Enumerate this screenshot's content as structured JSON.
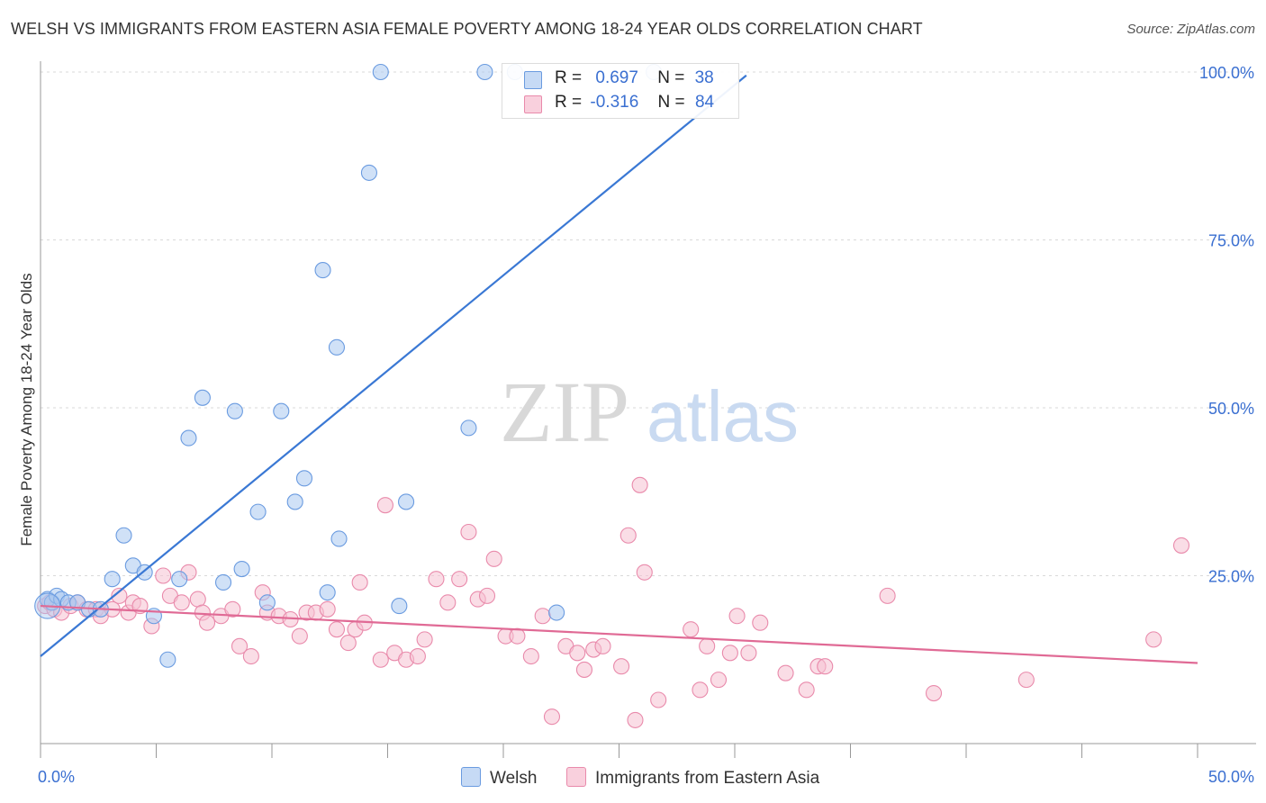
{
  "title": "WELSH VS IMMIGRANTS FROM EASTERN ASIA FEMALE POVERTY AMONG 18-24 YEAR OLDS CORRELATION CHART",
  "source": "Source: ZipAtlas.com",
  "watermark": {
    "zip": "ZIP",
    "atlas": "atlas"
  },
  "legend": {
    "welsh": {
      "r_label": "R =",
      "r_value": "0.697",
      "n_label": "N =",
      "n_value": "38"
    },
    "immigrants": {
      "r_label": "R =",
      "r_value": "-0.316",
      "n_label": "N =",
      "n_value": "84"
    }
  },
  "bottom_legend": {
    "welsh": "Welsh",
    "immigrants": "Immigrants from Eastern Asia"
  },
  "colors": {
    "welsh_fill": "#a9c8f0",
    "welsh_stroke": "#6a9be0",
    "welsh_line": "#3a78d4",
    "imm_fill": "#f6c1d2",
    "imm_stroke": "#e98aab",
    "imm_line": "#e06a95",
    "axis_label": "#3a6fd1",
    "grid": "#d9d9d9"
  },
  "chart_data": {
    "type": "scatter",
    "title": "WELSH VS IMMIGRANTS FROM EASTERN ASIA FEMALE POVERTY AMONG 18-24 YEAR OLDS CORRELATION CHART",
    "xlabel": "",
    "ylabel": "Female Poverty Among 18-24 Year Olds",
    "xlim": [
      0,
      50
    ],
    "ylim": [
      0,
      100
    ],
    "x_tick_labels": [
      "0.0%",
      "50.0%"
    ],
    "y_ticks": [
      25,
      50,
      75,
      100
    ],
    "y_tick_labels": [
      "25.0%",
      "50.0%",
      "75.0%",
      "100.0%"
    ],
    "grid": true,
    "legend_placement": "top-center",
    "series": [
      {
        "name": "Welsh",
        "points": [
          [
            0.3,
            21.5
          ],
          [
            0.5,
            21.0
          ],
          [
            0.7,
            22.0
          ],
          [
            0.9,
            21.5
          ],
          [
            1.2,
            21.0
          ],
          [
            1.6,
            21.0
          ],
          [
            2.1,
            20.0
          ],
          [
            2.6,
            20.0
          ],
          [
            3.1,
            24.5
          ],
          [
            3.6,
            31.0
          ],
          [
            4.0,
            26.5
          ],
          [
            4.5,
            25.5
          ],
          [
            4.9,
            19.0
          ],
          [
            5.5,
            12.5
          ],
          [
            6.0,
            24.5
          ],
          [
            6.4,
            45.5
          ],
          [
            7.0,
            51.5
          ],
          [
            7.9,
            24.0
          ],
          [
            8.4,
            49.5
          ],
          [
            8.7,
            26.0
          ],
          [
            9.4,
            34.5
          ],
          [
            9.8,
            21.0
          ],
          [
            10.4,
            49.5
          ],
          [
            11.0,
            36.0
          ],
          [
            11.4,
            39.5
          ],
          [
            12.2,
            70.5
          ],
          [
            12.4,
            22.5
          ],
          [
            12.8,
            59.0
          ],
          [
            12.9,
            30.5
          ],
          [
            14.2,
            85.0
          ],
          [
            14.7,
            100.0
          ],
          [
            15.5,
            20.5
          ],
          [
            15.8,
            36.0
          ],
          [
            18.5,
            47.0
          ],
          [
            19.2,
            100.0
          ],
          [
            20.5,
            100.0
          ],
          [
            22.3,
            19.5
          ],
          [
            26.5,
            100.0
          ]
        ],
        "trend": {
          "x": [
            0,
            30.5
          ],
          "y": [
            13.0,
            99.5
          ]
        }
      },
      {
        "name": "Immigrants from Eastern Asia",
        "points": [
          [
            0.2,
            20.5
          ],
          [
            0.4,
            21.0
          ],
          [
            0.6,
            20.0
          ],
          [
            0.9,
            19.5
          ],
          [
            1.3,
            20.5
          ],
          [
            1.6,
            21.0
          ],
          [
            2.0,
            20.0
          ],
          [
            2.4,
            20.0
          ],
          [
            2.6,
            19.0
          ],
          [
            3.1,
            20.0
          ],
          [
            3.4,
            22.0
          ],
          [
            3.8,
            19.5
          ],
          [
            4.0,
            21.0
          ],
          [
            4.3,
            20.5
          ],
          [
            4.8,
            17.5
          ],
          [
            5.3,
            25.0
          ],
          [
            5.6,
            22.0
          ],
          [
            6.1,
            21.0
          ],
          [
            6.4,
            25.5
          ],
          [
            6.8,
            21.5
          ],
          [
            7.0,
            19.5
          ],
          [
            7.2,
            18.0
          ],
          [
            7.8,
            19.0
          ],
          [
            8.3,
            20.0
          ],
          [
            8.6,
            14.5
          ],
          [
            9.1,
            13.0
          ],
          [
            9.6,
            22.5
          ],
          [
            9.8,
            19.5
          ],
          [
            10.3,
            19.0
          ],
          [
            10.8,
            18.5
          ],
          [
            11.2,
            16.0
          ],
          [
            11.5,
            19.5
          ],
          [
            11.9,
            19.5
          ],
          [
            12.4,
            20.0
          ],
          [
            12.8,
            17.0
          ],
          [
            13.3,
            15.0
          ],
          [
            13.6,
            17.0
          ],
          [
            13.8,
            24.0
          ],
          [
            14.0,
            18.0
          ],
          [
            14.7,
            12.5
          ],
          [
            14.9,
            35.5
          ],
          [
            15.3,
            13.5
          ],
          [
            15.8,
            12.5
          ],
          [
            16.3,
            13.0
          ],
          [
            16.6,
            15.5
          ],
          [
            17.1,
            24.5
          ],
          [
            17.6,
            21.0
          ],
          [
            18.1,
            24.5
          ],
          [
            18.5,
            31.5
          ],
          [
            18.9,
            21.5
          ],
          [
            19.3,
            22.0
          ],
          [
            19.6,
            27.5
          ],
          [
            20.1,
            16.0
          ],
          [
            20.6,
            16.0
          ],
          [
            21.2,
            13.0
          ],
          [
            21.7,
            19.0
          ],
          [
            22.1,
            4.0
          ],
          [
            22.7,
            14.5
          ],
          [
            23.2,
            13.5
          ],
          [
            23.5,
            11.0
          ],
          [
            23.9,
            14.0
          ],
          [
            24.3,
            14.5
          ],
          [
            25.1,
            11.5
          ],
          [
            25.4,
            31.0
          ],
          [
            25.7,
            3.5
          ],
          [
            25.9,
            38.5
          ],
          [
            26.1,
            25.5
          ],
          [
            26.7,
            6.5
          ],
          [
            28.1,
            17.0
          ],
          [
            28.5,
            8.0
          ],
          [
            28.8,
            14.5
          ],
          [
            29.3,
            9.5
          ],
          [
            29.8,
            13.5
          ],
          [
            30.1,
            19.0
          ],
          [
            30.6,
            13.5
          ],
          [
            31.1,
            18.0
          ],
          [
            32.2,
            10.5
          ],
          [
            33.1,
            8.0
          ],
          [
            33.6,
            11.5
          ],
          [
            33.9,
            11.5
          ],
          [
            36.6,
            22.0
          ],
          [
            38.6,
            7.5
          ],
          [
            42.6,
            9.5
          ],
          [
            48.1,
            15.5
          ],
          [
            49.3,
            29.5
          ]
        ],
        "trend": {
          "x": [
            0,
            50
          ],
          "y": [
            20.5,
            12.0
          ]
        }
      }
    ]
  }
}
